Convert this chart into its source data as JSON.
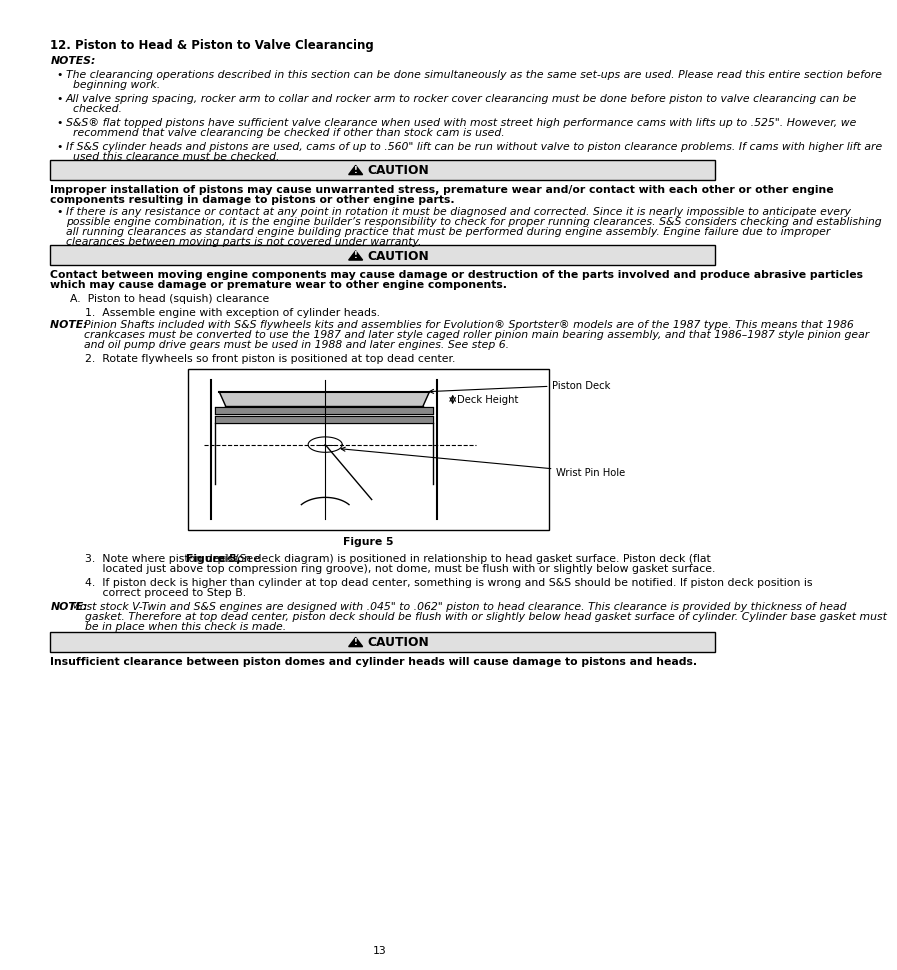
{
  "title": "12. Piston to Head & Piston to Valve Clearancing",
  "notes_label": "NOTES:",
  "bullet1": "The clearancing operations described in this section can be done simultaneously as the same set-ups are used. Please read this entire section before\n  beginning work.",
  "bullet2": "All valve spring spacing, rocker arm to collar and rocker arm to rocker cover clearancing must be done before piston to valve clearancing can be\n  checked.",
  "bullet3": "S&S® flat topped pistons have sufficient valve clearance when used with most street high performance cams with lifts up to .525\". However, we\n  recommend that valve clearancing be checked if other than stock cam is used.",
  "bullet4": "If S&S cylinder heads and pistons are used, cams of up to .560\" lift can be run without valve to piston clearance problems. If cams with higher lift are\n  used this clearance must be checked.",
  "caution1_bold_line1": "Improper installation of pistons may cause unwarranted stress, premature wear and/or contact with each other or other engine",
  "caution1_bold_line2": "components resulting in damage to pistons or other engine parts.",
  "caution1_bullet_line1": "If there is any resistance or contact at any point in rotation it must be diagnosed and corrected. Since it is nearly impossible to anticipate every",
  "caution1_bullet_line2": "possible engine combination, it is the engine builder’s responsibility to check for proper running clearances. S&S considers checking and establishing",
  "caution1_bullet_line3": "all running clearances as standard engine building practice that must be performed during engine assembly. Engine failure due to improper",
  "caution1_bullet_line4": "clearances between moving parts is not covered under warranty.",
  "caution2_bold_line1": "Contact between moving engine components may cause damage or destruction of the parts involved and produce abrasive particles",
  "caution2_bold_line2": "which may cause damage or premature wear to other engine components.",
  "section_a": "A.  Piston to head (squish) clearance",
  "step1": "1.  Assemble engine with exception of cylinder heads.",
  "note2_line1": "NOTE: Pinion Shafts included with S&S flywheels kits and assemblies for Evolution® Sportster® models are of the 1987 type. This means that 1986",
  "note2_line2": "crankcases must be converted to use the 1987 and later style caged roller pinion main bearing assembly, and that 1986–1987 style pinion gear",
  "note2_line3": "and oil pump drive gears must be used in 1988 and later engines. See step 6.",
  "step2": "2.  Rotate flywheels so front piston is positioned at top dead center.",
  "figure_label": "Figure 5",
  "step3_line1": "3.  Note where piston deck (See Figure 5, piston deck diagram) is positioned in relationship to head gasket surface. Piston deck (flat",
  "step3_line2": "     located just above top compression ring groove), not dome, must be flush with or slightly below gasket surface.",
  "step4_line1": "4.  If piston deck is higher than cylinder at top dead center, something is wrong and S&S should be notified. If piston deck position is",
  "step4_line2": "     correct proceed to Step B.",
  "note3_line1": "NOTE: Most stock V-Twin and S&S engines are designed with .045\" to .062\" piston to head clearance. This clearance is provided by thickness of head",
  "note3_line2": "gasket. Therefore at top dead center, piston deck should be flush with or slightly below head gasket surface of cylinder. Cylinder base gasket must",
  "note3_line3": "be in place when this check is made.",
  "caution3_bold": "Insufficient clearance between piston domes and cylinder heads will cause damage to pistons and heads.",
  "page_number": "13",
  "bg_color": "#ffffff",
  "caution_bg": "#e0e0e0",
  "text_color": "#000000",
  "lm": 0.055,
  "rm": 0.955,
  "fs": 7.8,
  "fs_title": 8.5
}
